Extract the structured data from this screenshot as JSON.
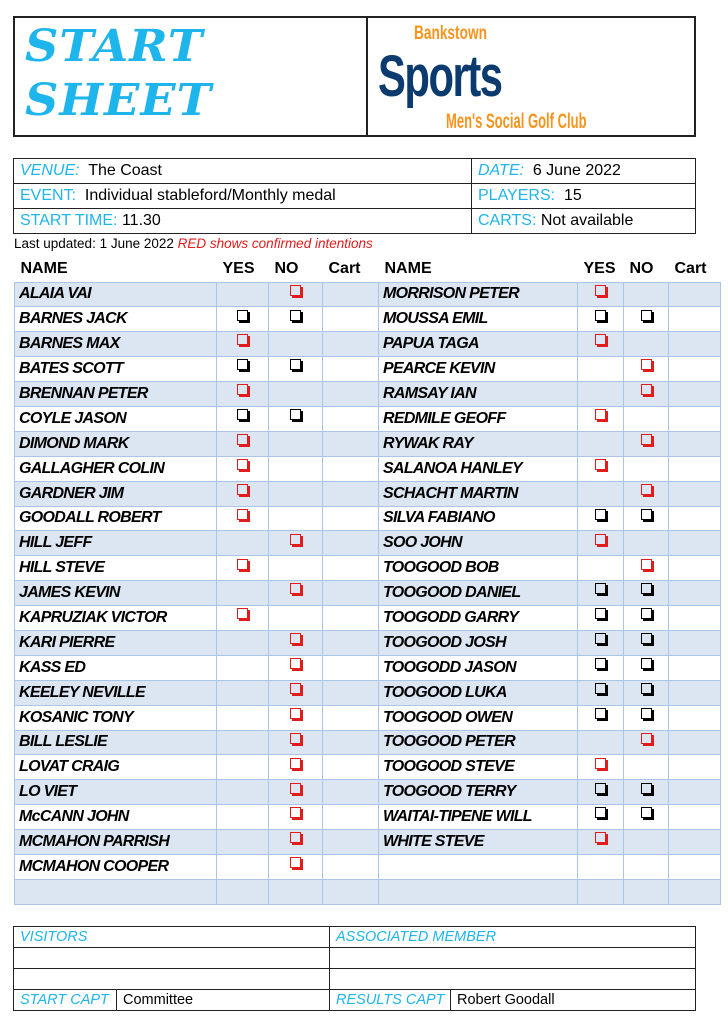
{
  "header": {
    "title_line1": "START",
    "title_line2": "SHEET",
    "logo": {
      "top": "Bankstown",
      "main": "Sports",
      "bottom": "Men's Social Golf Club",
      "colors": {
        "navy": "#0b3a6e",
        "orange": "#f7941d"
      }
    }
  },
  "info": {
    "venue_label": "VENUE:",
    "venue": "The Coast",
    "date_label": "DATE:",
    "date": "6 June 2022",
    "event_label": "EVENT:",
    "event": "Individual stableford/Monthly medal",
    "players_label": "PLAYERS:",
    "players": "15",
    "start_label": "START TIME:",
    "start": "11.30",
    "carts_label": "CARTS:",
    "carts": "Not available"
  },
  "updated": {
    "text": "Last updated: 1 June 2022",
    "note": "RED shows confirmed intentions"
  },
  "columns": {
    "name": "NAME",
    "yes": "YES",
    "no": "NO",
    "cart": "Cart"
  },
  "colors": {
    "accent": "#1eb4ec",
    "red": "#e21b1b",
    "stripe": "#dce6f2"
  },
  "left": [
    [
      "ALAIA VAI",
      "",
      "red"
    ],
    [
      "BARNES JACK",
      "black",
      "black"
    ],
    [
      "BARNES MAX",
      "red",
      ""
    ],
    [
      "BATES SCOTT",
      "black",
      "black"
    ],
    [
      "BRENNAN PETER",
      "red",
      ""
    ],
    [
      "COYLE JASON",
      "black",
      "black"
    ],
    [
      "DIMOND MARK",
      "red",
      ""
    ],
    [
      "GALLAGHER COLIN",
      "red",
      ""
    ],
    [
      "GARDNER JIM",
      "red",
      ""
    ],
    [
      "GOODALL ROBERT",
      "red",
      ""
    ],
    [
      "HILL JEFF",
      "",
      "red"
    ],
    [
      "HILL STEVE",
      "red",
      ""
    ],
    [
      "JAMES KEVIN",
      "",
      "red"
    ],
    [
      "KAPRUZIAK VICTOR",
      "red",
      ""
    ],
    [
      "KARI PIERRE",
      "",
      "red"
    ],
    [
      "KASS ED",
      "",
      "red"
    ],
    [
      "KEELEY NEVILLE",
      "",
      "red"
    ],
    [
      "KOSANIC TONY",
      "",
      "red"
    ],
    [
      "BILL LESLIE",
      "",
      "red"
    ],
    [
      "LOVAT CRAIG",
      "",
      "red"
    ],
    [
      "LO VIET",
      "",
      "red"
    ],
    [
      "McCANN JOHN",
      "",
      "red"
    ],
    [
      "MCMAHON PARRISH",
      "",
      "red"
    ],
    [
      "MCMAHON COOPER",
      "",
      "red"
    ]
  ],
  "right": [
    [
      "MORRISON PETER",
      "red",
      ""
    ],
    [
      "MOUSSA EMIL",
      "black",
      "black"
    ],
    [
      "PAPUA TAGA",
      "red",
      ""
    ],
    [
      "PEARCE KEVIN",
      "",
      "red"
    ],
    [
      "RAMSAY IAN",
      "",
      "red"
    ],
    [
      "REDMILE GEOFF",
      "red",
      ""
    ],
    [
      "RYWAK RAY",
      "",
      "red"
    ],
    [
      "SALANOA HANLEY",
      "red",
      ""
    ],
    [
      "SCHACHT MARTIN",
      "",
      "red"
    ],
    [
      "SILVA FABIANO",
      "black",
      "black"
    ],
    [
      "SOO JOHN",
      "red",
      ""
    ],
    [
      "TOOGOOD BOB",
      "",
      "red"
    ],
    [
      "TOOGOOD DANIEL",
      "black",
      "black"
    ],
    [
      "TOOGODD GARRY",
      "black",
      "black"
    ],
    [
      "TOOGOOD JOSH",
      "black",
      "black"
    ],
    [
      "TOOGODD JASON",
      "black",
      "black"
    ],
    [
      "TOOGOOD LUKA",
      "black",
      "black"
    ],
    [
      "TOOGOOD OWEN",
      "black",
      "black"
    ],
    [
      "TOOGOOD PETER",
      "",
      "red"
    ],
    [
      "TOOGOOD STEVE",
      "red",
      ""
    ],
    [
      "TOOGOOD TERRY",
      "black",
      "black"
    ],
    [
      "WAITAI-TIPENE WILL",
      "black",
      "black"
    ],
    [
      "WHITE STEVE",
      "red",
      ""
    ]
  ],
  "footer": {
    "visitors": "VISITORS",
    "associated": "ASSOCIATED MEMBER",
    "start_capt_label": "START CAPT",
    "start_capt": "Committee",
    "results_capt_label": "RESULTS CAPT",
    "results_capt": "Robert Goodall"
  }
}
